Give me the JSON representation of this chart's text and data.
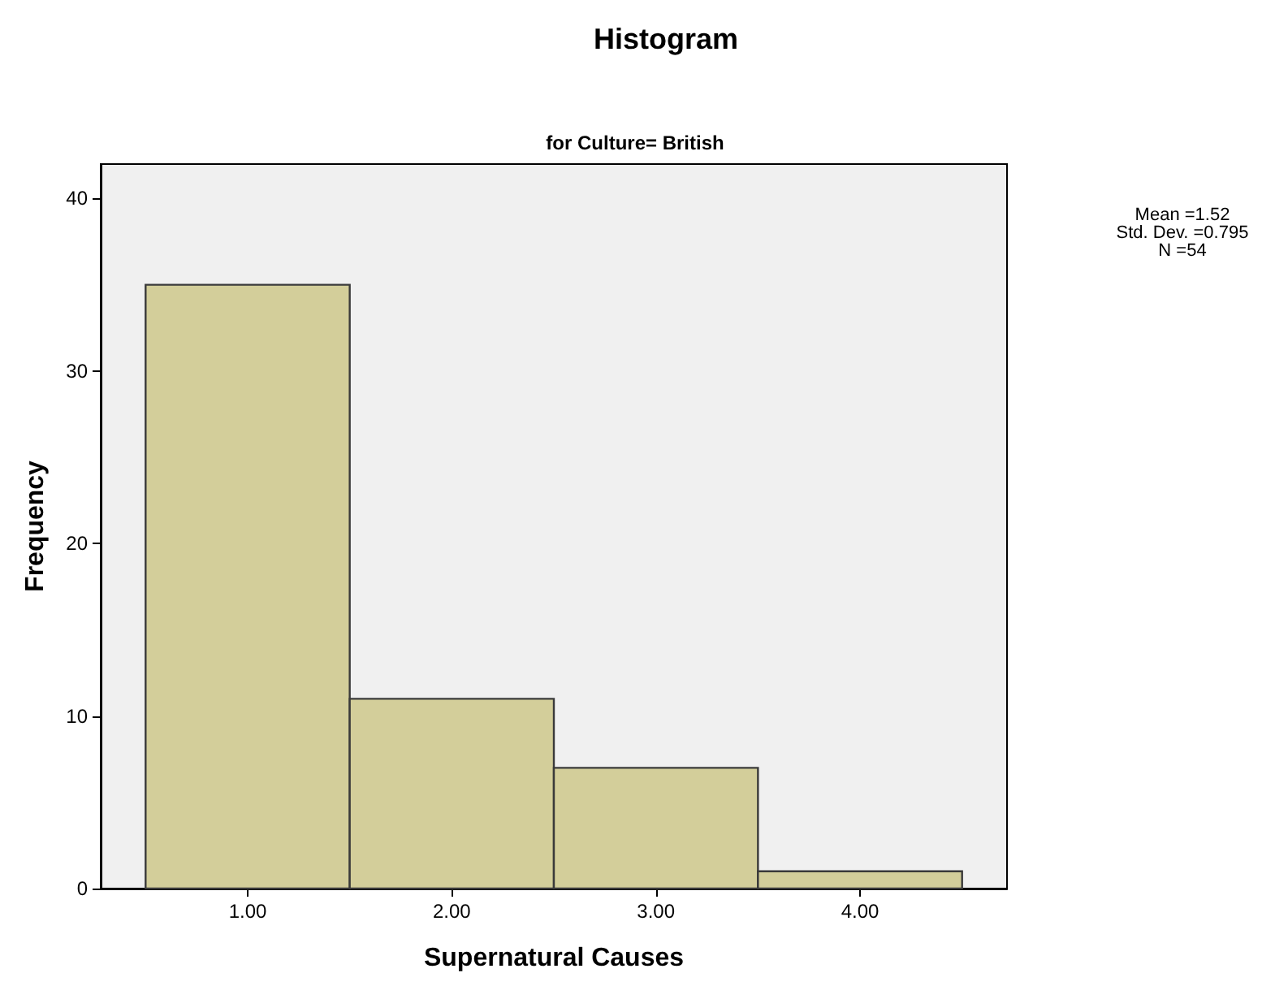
{
  "chart_data": {
    "type": "histogram",
    "title": "Histogram",
    "subtitle": "for Culture= British",
    "xlabel": "Supernatural Causes",
    "ylabel": "Frequency",
    "bins": [
      0.5,
      1.5,
      2.5,
      3.5,
      4.5
    ],
    "values": [
      35,
      11,
      7,
      1
    ],
    "color": "#d3ce9a",
    "xlim": [
      0.28,
      4.72
    ],
    "xticks": [
      {
        "value": 1,
        "label": "1.00"
      },
      {
        "value": 2,
        "label": "2.00"
      },
      {
        "value": 3,
        "label": "3.00"
      },
      {
        "value": 4,
        "label": "4.00"
      }
    ],
    "ylim": [
      0,
      42
    ],
    "yticks": [
      0,
      10,
      20,
      30,
      40
    ],
    "grid": false,
    "annotations": [
      "Mean =1.52",
      "Std. Dev. =0.795",
      "N =54"
    ]
  }
}
